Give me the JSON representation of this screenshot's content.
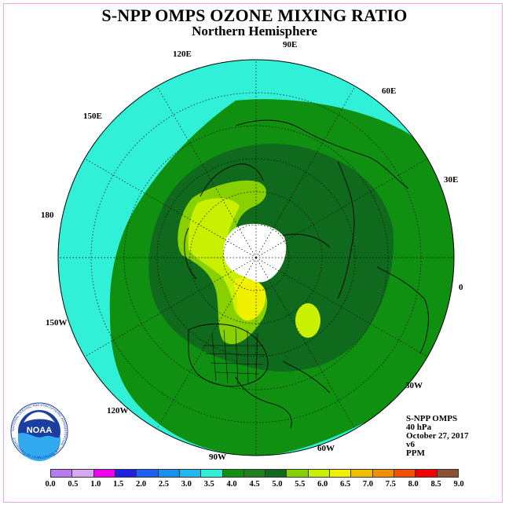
{
  "title": "S-NPP OMPS OZONE MIXING RATIO",
  "subtitle": "Northern Hemisphere",
  "longitude_labels": [
    {
      "text": "90E",
      "key": "lon-90e"
    },
    {
      "text": "60E",
      "key": "lon-60e"
    },
    {
      "text": "120E",
      "key": "lon-120e"
    },
    {
      "text": "150E",
      "key": "lon-150e"
    },
    {
      "text": "30E",
      "key": "lon-30e"
    },
    {
      "text": "180",
      "key": "lon-180"
    },
    {
      "text": "0",
      "key": "lon-0"
    },
    {
      "text": "150W",
      "key": "lon-150w"
    },
    {
      "text": "30W",
      "key": "lon-30w"
    },
    {
      "text": "120W",
      "key": "lon-120w"
    },
    {
      "text": "60W",
      "key": "lon-60w"
    },
    {
      "text": "90W",
      "key": "lon-90w"
    }
  ],
  "info": {
    "instrument": "S-NPP OMPS",
    "level": "40 hPa",
    "date": "October 27, 2017",
    "version": "v6",
    "units": "PPM"
  },
  "logo_text": "NOAA",
  "logo_ring_text": "NATIONAL OCEANIC AND ATMOSPHERIC ADMINISTRATION · U.S. DEPARTMENT OF COMMERCE",
  "colorbar": {
    "ticks": [
      "0.0",
      "0.5",
      "1.0",
      "1.5",
      "2.0",
      "2.5",
      "3.0",
      "3.5",
      "4.0",
      "4.5",
      "5.0",
      "5.5",
      "6.0",
      "6.5",
      "7.0",
      "7.5",
      "8.0",
      "8.5",
      "9.0"
    ],
    "colors": [
      "#b87af0",
      "#d8a8f0",
      "#f000f0",
      "#2020e0",
      "#2060f0",
      "#1890f0",
      "#20b8f0",
      "#30f0d8",
      "#109010",
      "#208020",
      "#106a1e",
      "#88d000",
      "#c8f000",
      "#f0f000",
      "#f0c000",
      "#f09000",
      "#f05000",
      "#f00000",
      "#8a5030"
    ]
  },
  "map_zones": {
    "outer_color": "#30f0d8",
    "mid_color": "#109010",
    "inner_color": "#106a1e",
    "high_color_1": "#88d000",
    "high_color_2": "#c8f000",
    "peak_color": "#f0f000",
    "polar_night_color": "#ffffff"
  }
}
